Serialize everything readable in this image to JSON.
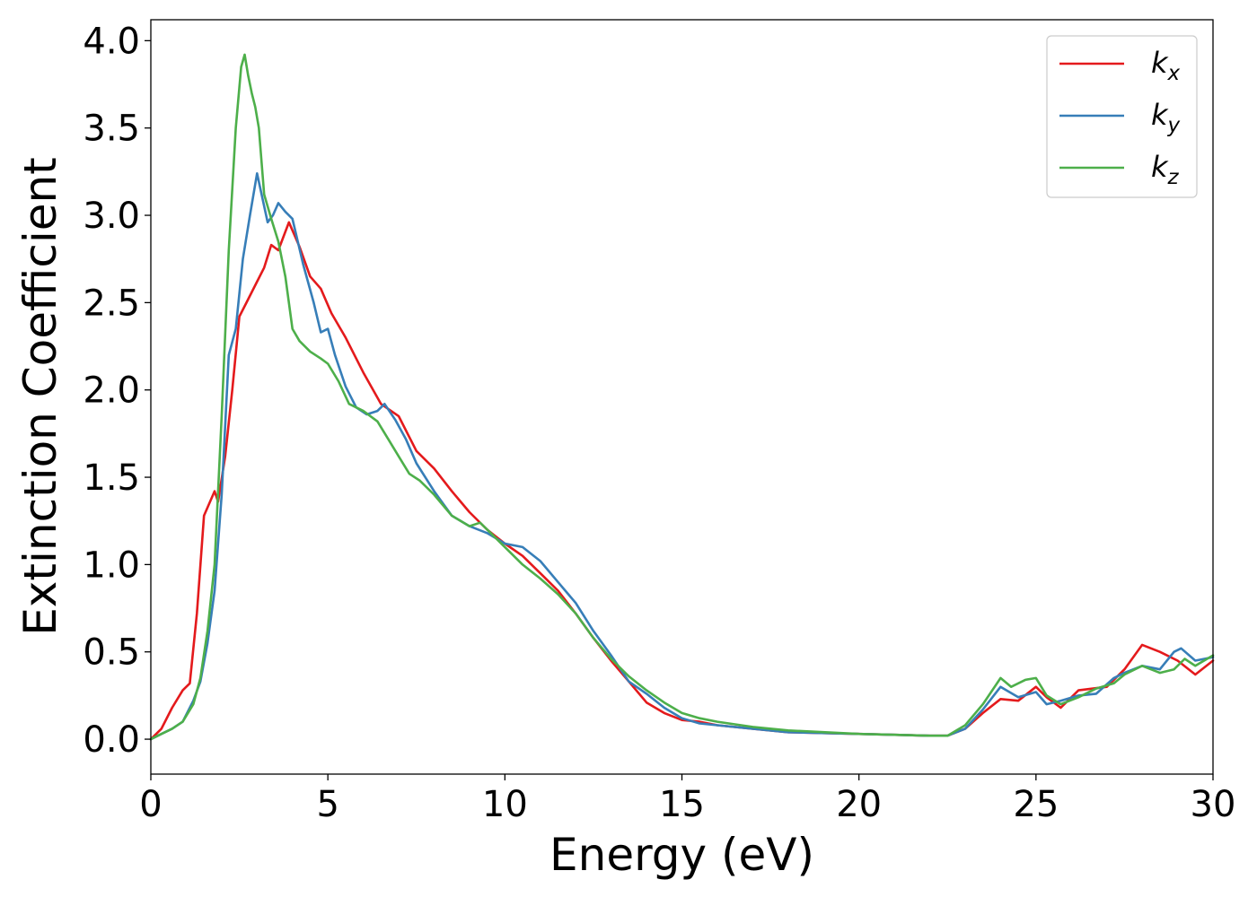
{
  "chart_data": {
    "type": "line",
    "title": "",
    "xlabel": "Energy (eV)",
    "ylabel": "Extinction Coefficient",
    "xlim": [
      0,
      30
    ],
    "ylim": [
      -0.2,
      4.12
    ],
    "xticks": [
      0,
      5,
      10,
      15,
      20,
      25,
      30
    ],
    "yticks": [
      0.0,
      0.5,
      1.0,
      1.5,
      2.0,
      2.5,
      3.0,
      3.5,
      4.0
    ],
    "xtick_labels": [
      "0",
      "5",
      "10",
      "15",
      "20",
      "25",
      "30"
    ],
    "ytick_labels": [
      "0.0",
      "0.5",
      "1.0",
      "1.5",
      "2.0",
      "2.5",
      "3.0",
      "3.5",
      "4.0"
    ],
    "grid": false,
    "legend_position": "top-right",
    "series": [
      {
        "name": "k_x",
        "legend_base": "k",
        "legend_sub": "x",
        "color": "#e41a1c",
        "x": [
          0,
          0.3,
          0.6,
          0.9,
          1.1,
          1.3,
          1.5,
          1.8,
          1.9,
          2.1,
          2.3,
          2.5,
          2.7,
          3.0,
          3.2,
          3.4,
          3.6,
          3.9,
          4.2,
          4.5,
          4.8,
          5.1,
          5.5,
          6.0,
          6.5,
          7.0,
          7.5,
          8.0,
          8.5,
          9.0,
          9.5,
          10.0,
          10.5,
          11.0,
          11.5,
          12.0,
          12.5,
          13.0,
          13.5,
          14.0,
          14.5,
          15.0,
          15.5,
          16.0,
          17.0,
          18.0,
          20.0,
          22.0,
          22.5,
          23.0,
          23.5,
          24.0,
          24.5,
          25.0,
          25.3,
          25.7,
          26.2,
          27.0,
          27.5,
          28.0,
          28.5,
          29.0,
          29.5,
          30.0
        ],
        "y": [
          0.0,
          0.06,
          0.18,
          0.28,
          0.32,
          0.72,
          1.28,
          1.42,
          1.36,
          1.62,
          2.0,
          2.42,
          2.5,
          2.62,
          2.7,
          2.83,
          2.8,
          2.96,
          2.82,
          2.65,
          2.58,
          2.44,
          2.3,
          2.1,
          1.92,
          1.85,
          1.65,
          1.55,
          1.42,
          1.3,
          1.2,
          1.12,
          1.05,
          0.95,
          0.85,
          0.72,
          0.58,
          0.45,
          0.33,
          0.21,
          0.15,
          0.11,
          0.1,
          0.08,
          0.06,
          0.04,
          0.03,
          0.02,
          0.02,
          0.06,
          0.15,
          0.23,
          0.22,
          0.3,
          0.24,
          0.18,
          0.28,
          0.3,
          0.4,
          0.54,
          0.5,
          0.45,
          0.37,
          0.45
        ]
      },
      {
        "name": "k_y",
        "legend_base": "k",
        "legend_sub": "y",
        "color": "#377eb8",
        "x": [
          0,
          0.3,
          0.6,
          0.9,
          1.2,
          1.4,
          1.6,
          1.8,
          2.0,
          2.2,
          2.4,
          2.6,
          2.8,
          3.0,
          3.15,
          3.3,
          3.45,
          3.6,
          3.8,
          4.0,
          4.3,
          4.6,
          4.8,
          5.0,
          5.2,
          5.5,
          5.8,
          6.1,
          6.4,
          6.6,
          6.9,
          7.2,
          7.5,
          8.0,
          8.5,
          9.0,
          9.5,
          10.0,
          10.5,
          11.0,
          11.5,
          12.0,
          12.5,
          13.0,
          13.5,
          14.0,
          14.5,
          15.0,
          15.5,
          16.0,
          17.0,
          18.0,
          20.0,
          22.0,
          22.5,
          23.0,
          23.5,
          24.0,
          24.5,
          25.0,
          25.3,
          25.7,
          26.2,
          26.7,
          27.2,
          27.5,
          28.0,
          28.5,
          28.9,
          29.1,
          29.5,
          30.0
        ],
        "y": [
          0.0,
          0.03,
          0.06,
          0.1,
          0.22,
          0.33,
          0.55,
          0.85,
          1.4,
          2.2,
          2.35,
          2.75,
          3.0,
          3.24,
          3.1,
          2.96,
          3.0,
          3.07,
          3.02,
          2.98,
          2.72,
          2.5,
          2.33,
          2.35,
          2.2,
          2.02,
          1.9,
          1.86,
          1.88,
          1.92,
          1.83,
          1.72,
          1.58,
          1.42,
          1.28,
          1.22,
          1.18,
          1.12,
          1.1,
          1.02,
          0.9,
          0.78,
          0.62,
          0.48,
          0.33,
          0.26,
          0.18,
          0.12,
          0.09,
          0.08,
          0.06,
          0.04,
          0.03,
          0.02,
          0.02,
          0.06,
          0.17,
          0.3,
          0.24,
          0.27,
          0.2,
          0.22,
          0.25,
          0.26,
          0.35,
          0.38,
          0.42,
          0.4,
          0.5,
          0.52,
          0.45,
          0.47
        ]
      },
      {
        "name": "k_z",
        "legend_base": "k",
        "legend_sub": "z",
        "color": "#4daf4a",
        "x": [
          0,
          0.3,
          0.6,
          0.9,
          1.2,
          1.4,
          1.6,
          1.8,
          2.0,
          2.2,
          2.4,
          2.55,
          2.65,
          2.75,
          2.85,
          2.95,
          3.05,
          3.2,
          3.4,
          3.6,
          3.8,
          4.0,
          4.2,
          4.5,
          4.8,
          5.0,
          5.3,
          5.6,
          6.0,
          6.4,
          6.7,
          7.0,
          7.3,
          7.6,
          8.0,
          8.5,
          9.0,
          9.3,
          9.6,
          10.0,
          10.5,
          11.0,
          11.5,
          12.0,
          12.5,
          13.0,
          13.5,
          14.0,
          14.5,
          15.0,
          15.5,
          16.0,
          17.0,
          18.0,
          20.0,
          22.0,
          22.5,
          23.0,
          23.5,
          24.0,
          24.3,
          24.7,
          25.0,
          25.3,
          25.7,
          26.2,
          26.7,
          27.2,
          27.5,
          28.0,
          28.5,
          28.9,
          29.2,
          29.5,
          30.0
        ],
        "y": [
          0.0,
          0.03,
          0.06,
          0.1,
          0.2,
          0.35,
          0.62,
          1.0,
          1.85,
          2.8,
          3.5,
          3.85,
          3.92,
          3.8,
          3.7,
          3.62,
          3.5,
          3.12,
          2.98,
          2.85,
          2.65,
          2.35,
          2.28,
          2.22,
          2.18,
          2.15,
          2.05,
          1.92,
          1.88,
          1.82,
          1.72,
          1.62,
          1.52,
          1.48,
          1.4,
          1.28,
          1.22,
          1.24,
          1.18,
          1.1,
          1.0,
          0.92,
          0.83,
          0.72,
          0.58,
          0.46,
          0.36,
          0.28,
          0.21,
          0.15,
          0.12,
          0.1,
          0.07,
          0.05,
          0.03,
          0.02,
          0.02,
          0.08,
          0.2,
          0.35,
          0.3,
          0.34,
          0.35,
          0.25,
          0.2,
          0.24,
          0.29,
          0.32,
          0.37,
          0.42,
          0.38,
          0.4,
          0.46,
          0.42,
          0.48
        ]
      }
    ]
  }
}
